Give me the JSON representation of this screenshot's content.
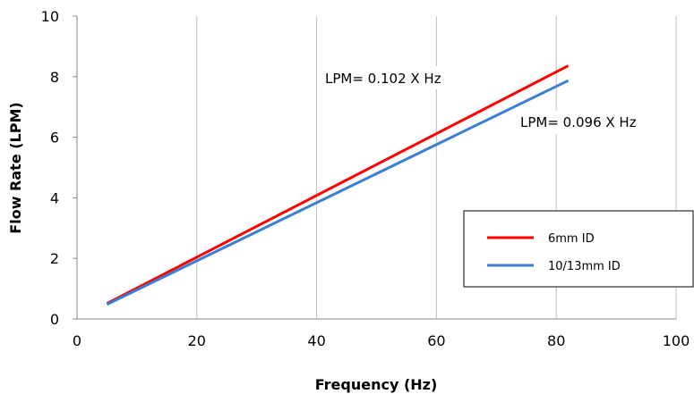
{
  "chart_data": {
    "type": "line",
    "title": "",
    "xlabel": "Frequency (Hz)",
    "ylabel": "Flow Rate (LPM)",
    "xlim": [
      0,
      100
    ],
    "ylim": [
      0,
      10
    ],
    "xticks": [
      "0",
      "20",
      "40",
      "60",
      "80",
      "100"
    ],
    "yticks": [
      "0",
      "2",
      "4",
      "6",
      "8",
      "10"
    ],
    "grid": "vertical",
    "legend_position": "bottom-right",
    "series": [
      {
        "name": "6mm ID",
        "color": "#ff0000",
        "x": [
          5,
          82
        ],
        "y": [
          0.51,
          8.36
        ]
      },
      {
        "name": "10/13mm ID",
        "color": "#3a7fd5",
        "x": [
          5,
          82
        ],
        "y": [
          0.48,
          7.87
        ]
      }
    ],
    "annotations": [
      {
        "text": "LPM= 0.102 X Hz"
      },
      {
        "text": "LPM= 0.096 X Hz"
      }
    ]
  }
}
